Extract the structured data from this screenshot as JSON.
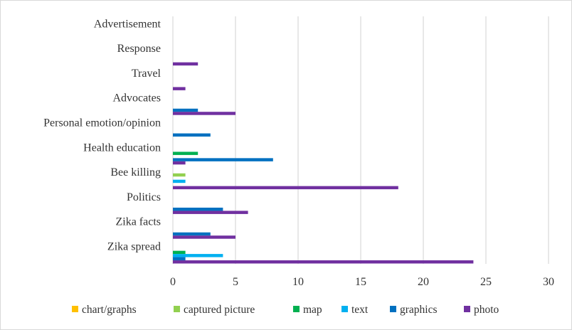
{
  "chart_data": {
    "type": "bar",
    "orientation": "horizontal",
    "categories": [
      "Zika spread",
      "Zika facts",
      "Politics",
      "Bee killing",
      "Health education",
      "Personal emotion/opinion",
      "Advocates",
      "Travel",
      "Response",
      "Advertisement"
    ],
    "series": [
      {
        "name": "chart/graphs",
        "color": "#ffc000",
        "values": [
          0,
          0,
          0,
          0,
          0,
          0,
          0,
          0,
          0,
          0
        ]
      },
      {
        "name": "captured picture",
        "color": "#92d050",
        "values": [
          0,
          0,
          0,
          1,
          0,
          0,
          0,
          0,
          0,
          0
        ]
      },
      {
        "name": "map",
        "color": "#00b050",
        "values": [
          1,
          0,
          0,
          0,
          2,
          0,
          0,
          0,
          0,
          0
        ]
      },
      {
        "name": "text",
        "color": "#00b0f0",
        "values": [
          4,
          0,
          0,
          1,
          0,
          0,
          0,
          0,
          0,
          0
        ]
      },
      {
        "name": "graphics",
        "color": "#0070c0",
        "values": [
          1,
          3,
          4,
          0,
          8,
          3,
          2,
          0,
          0,
          0
        ]
      },
      {
        "name": "photo",
        "color": "#7030a0",
        "values": [
          24,
          5,
          6,
          18,
          1,
          0,
          5,
          1,
          2,
          0
        ]
      }
    ],
    "xlim": [
      0,
      30
    ],
    "xticks": [
      0,
      5,
      10,
      15,
      20,
      25,
      30
    ],
    "grid": true,
    "legend_position": "bottom",
    "title": "",
    "xlabel": "",
    "ylabel": ""
  }
}
